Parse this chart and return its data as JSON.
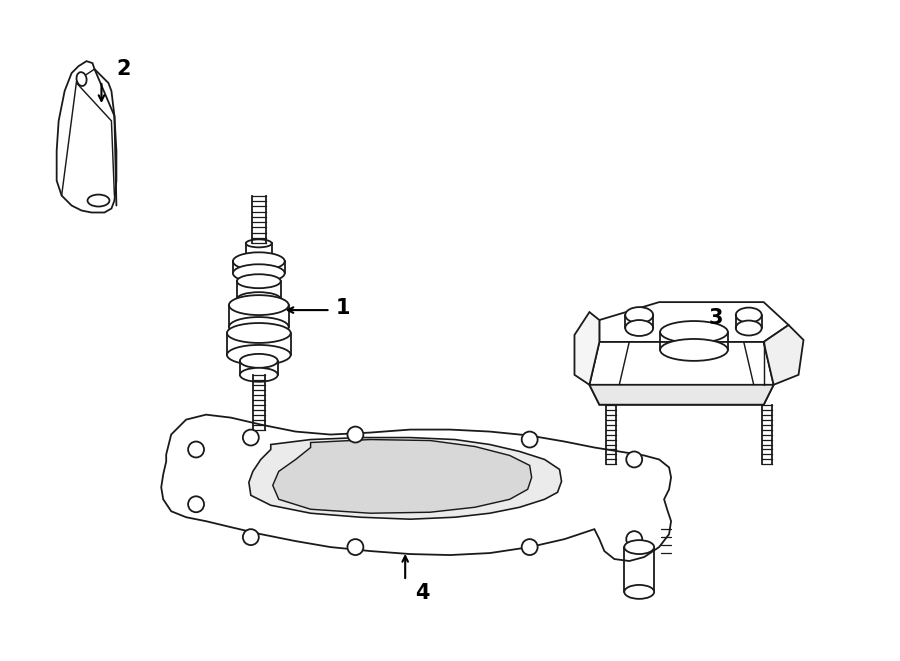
{
  "background_color": "#ffffff",
  "line_color": "#1a1a1a",
  "label_color": "#000000",
  "figsize": [
    9.0,
    6.61
  ],
  "dpi": 100,
  "lw": 1.3
}
